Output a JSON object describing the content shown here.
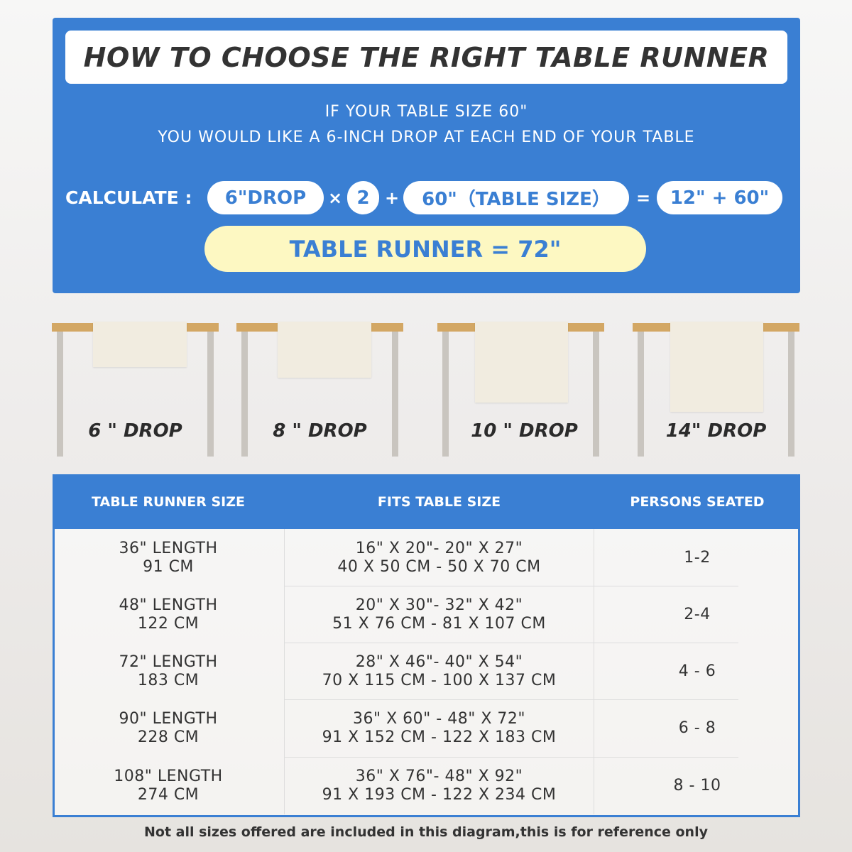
{
  "title": "HOW TO CHOOSE THE RIGHT TABLE RUNNER",
  "subtitle": [
    "IF YOUR TABLE SIZE 60\"",
    "YOU WOULD LIKE A 6-INCH DROP AT EACH END OF YOUR TABLE"
  ],
  "calculate": {
    "label": "CALCULATE :",
    "drop": "6\"DROP",
    "times": "×",
    "two": "2",
    "plus": "+",
    "table_size": "60\"（TABLE SIZE）",
    "equals": "=",
    "sum": "12\" + 60\"",
    "result": "TABLE RUNNER = 72\""
  },
  "drops": [
    "6 \" DROP",
    "8 \" DROP",
    "10 \" DROP",
    "14\" DROP"
  ],
  "colors": {
    "primary": "#3a7fd3",
    "result_bg": "#fdf8c2",
    "table_top": "#d3a764",
    "runner": "#f1ece0"
  },
  "table": {
    "headers": [
      "TABLE RUNNER SIZE",
      "FITS TABLE SIZE",
      "PERSONS SEATED"
    ],
    "rows": [
      {
        "size": [
          "36\" LENGTH",
          "91 CM"
        ],
        "fits": [
          "16\" X 20\"- 20\" X 27\"",
          "40 X 50 CM - 50 X 70 CM"
        ],
        "persons": "1-2"
      },
      {
        "size": [
          "48\" LENGTH",
          "122 CM"
        ],
        "fits": [
          "20\" X 30\"- 32\" X 42\"",
          "51 X 76 CM - 81 X 107 CM"
        ],
        "persons": "2-4"
      },
      {
        "size": [
          "72\" LENGTH",
          "183 CM"
        ],
        "fits": [
          "28\" X 46\"- 40\" X 54\"",
          "70 X 115 CM - 100 X 137 CM"
        ],
        "persons": "4 - 6"
      },
      {
        "size": [
          "90\" LENGTH",
          "228 CM"
        ],
        "fits": [
          "36\" X 60\" - 48\" X 72\"",
          "91 X 152 CM - 122 X 183 CM"
        ],
        "persons": "6 - 8"
      },
      {
        "size": [
          "108\" LENGTH",
          "274 CM"
        ],
        "fits": [
          "36\" X 76\"- 48\" X 92\"",
          "91 X 193 CM - 122 X 234 CM"
        ],
        "persons": "8 - 10"
      }
    ]
  },
  "footer": "Not all sizes offered are included in this diagram,this is for reference only"
}
